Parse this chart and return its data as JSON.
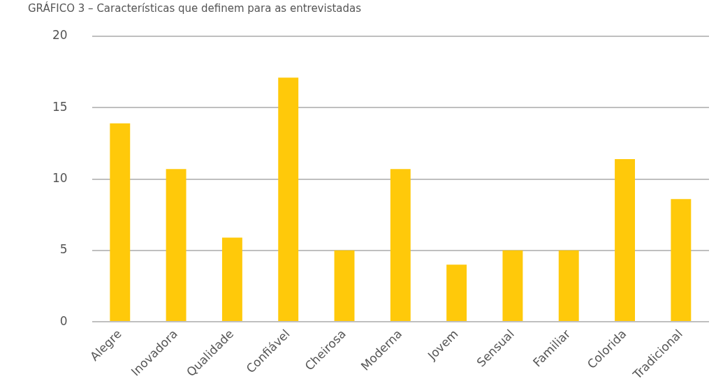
{
  "chart_data": {
    "type": "bar",
    "title": "GRÁFICO 3 – Características que definem para as entrevistadas",
    "categories": [
      "Alegre",
      "Inovadora",
      "Qualidade",
      "Confiável",
      "Cheirosa",
      "Moderna",
      "Jovem",
      "Sensual",
      "Familiar",
      "Colorida",
      "Tradicional"
    ],
    "values": [
      13.9,
      10.7,
      5.9,
      17.1,
      5,
      10.7,
      4,
      5,
      5,
      11.4,
      8.6
    ],
    "color": "#ffc90a",
    "ylim": [
      0,
      20
    ],
    "yticks": [
      0,
      5,
      10,
      15,
      20
    ],
    "grid": "y"
  }
}
